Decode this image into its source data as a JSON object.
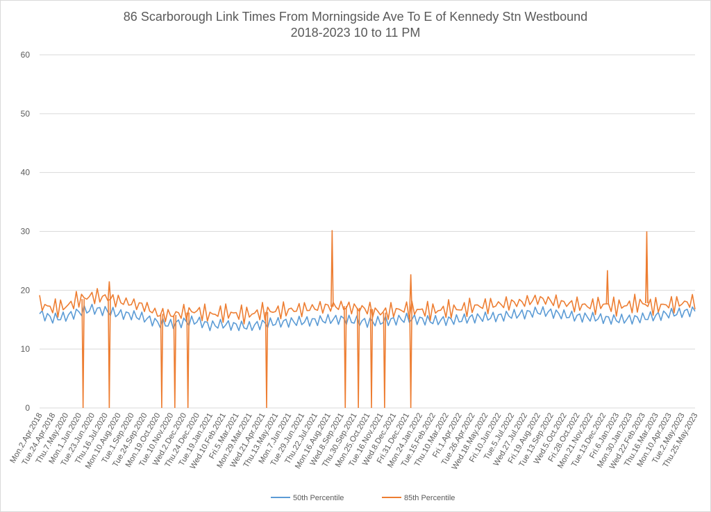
{
  "chart_data": {
    "type": "line",
    "title": [
      "86 Scarborough Link Times From Morningside Ave To E of Kennedy Stn Westbound",
      "2018-2023 10 to 11 PM"
    ],
    "xlabel": "",
    "ylabel": "",
    "ylim": [
      0,
      60
    ],
    "yticks": [
      0,
      10,
      20,
      30,
      40,
      50,
      60
    ],
    "grid": true,
    "legend_position": "bottom",
    "categories": [
      "Mon.2.Apr.2018",
      "Tue.24.Apr.2018",
      "Thu.7.May.2020",
      "Mon.1.Jun.2020",
      "Tue.23.Jun.2020",
      "Thu.16.Jul.2020",
      "Mon.10.Aug.2020",
      "Tue.1.Sep.2020",
      "Tue.24.Sep.2020",
      "Mon.19.Oct.2020",
      "Tue.10.Nov.2020",
      "Wed.2.Dec.2020",
      "Thu.24.Dec.2020",
      "Tue.19.Jan.2021",
      "Wed.10.Feb.2021",
      "Fri.5.Mar.2021",
      "Mon.29.Mar.2021",
      "Wed.21.Apr.2021",
      "Thu.13.May.2021",
      "Mon.7.Jun.2021",
      "Tue.29.Jun.2021",
      "Thu.22.Jul.2021",
      "Mon.16.Aug.2021",
      "Wed.8.Sep.2021",
      "Thu.30.Sep.2021",
      "Mon.25.Oct.2021",
      "Tue.16.Nov.2021",
      "Wed.8.Dec.2021",
      "Fri.31.Dec.2021",
      "Mon.24.Jan.2022",
      "Tue.15.Feb.2022",
      "Thu.10.Mar.2022",
      "Fri.1.Apr.2022",
      "Tue.26.Apr.2022",
      "Wed.18.May.2022",
      "Fri.10.Jun.2022",
      "Tue.5.Jul.2022",
      "Wed.27.Jul.2022",
      "Fri.19.Aug.2022",
      "Tue.13.Sep.2022",
      "Wed.5.Oct.2022",
      "Fri.28.Oct.2022",
      "Mon.21.Nov.2022",
      "Tue.13.Dec.2022",
      "Fri.6.Jan.2023",
      "Mon.30.Jan.2023",
      "Wed.22.Feb.2023",
      "Thu.16.Mar.2023",
      "Mon.10.Apr.2023",
      "Tue.2.May.2023",
      "Thu.25.May.2023"
    ],
    "series": [
      {
        "name": "50th Percentile",
        "color": "#5b9bd5",
        "values": [
          16.0,
          15.2,
          15.5,
          16.3,
          16.8,
          16.5,
          16.0,
          15.8,
          15.3,
          14.5,
          14.2,
          14.6,
          14.8,
          14.0,
          14.2,
          14.0,
          13.8,
          14.3,
          14.5,
          14.6,
          14.7,
          14.8,
          15.0,
          15.1,
          14.8,
          14.6,
          14.7,
          14.9,
          15.2,
          15.0,
          14.8,
          14.9,
          15.0,
          15.3,
          15.4,
          15.5,
          15.8,
          16.0,
          16.4,
          16.2,
          15.8,
          15.5,
          15.4,
          15.2,
          15.0,
          15.1,
          15.3,
          15.6,
          16.0,
          16.2,
          16.5
        ]
      },
      {
        "name": "85th Percentile",
        "color": "#ed7d31",
        "values": [
          17.6,
          17.0,
          17.2,
          18.5,
          19.0,
          18.8,
          18.2,
          17.8,
          17.3,
          16.0,
          15.8,
          16.2,
          16.5,
          15.8,
          16.2,
          16.0,
          15.9,
          16.3,
          16.5,
          16.6,
          16.8,
          17.0,
          17.2,
          17.3,
          17.0,
          16.8,
          16.2,
          16.5,
          16.8,
          16.6,
          16.5,
          16.7,
          16.8,
          17.2,
          17.4,
          17.6,
          17.8,
          18.0,
          18.5,
          18.2,
          17.8,
          17.5,
          17.3,
          17.6,
          17.2,
          17.5,
          17.8,
          17.2,
          17.6,
          17.8,
          18.0
        ]
      }
    ],
    "spikes_85th": [
      {
        "category": "Mon.1.Jun.2020",
        "value": 0
      },
      {
        "category": "Thu.16.Jul.2020",
        "value": 0
      },
      {
        "category": "Thu.16.Jul.2020",
        "value": 21.5
      },
      {
        "category": "Mon.19.Oct.2020",
        "value": 0
      },
      {
        "category": "Tue.10.Nov.2020",
        "value": 0
      },
      {
        "category": "Wed.2.Dec.2020",
        "value": 0
      },
      {
        "category": "Wed.21.Apr.2021",
        "value": 0
      },
      {
        "category": "Mon.16.Aug.2021",
        "value": 30.2
      },
      {
        "category": "Wed.8.Sep.2021",
        "value": 0
      },
      {
        "category": "Thu.30.Sep.2021",
        "value": 0
      },
      {
        "category": "Mon.25.Oct.2021",
        "value": 0
      },
      {
        "category": "Tue.16.Nov.2021",
        "value": 0
      },
      {
        "category": "Fri.31.Dec.2021",
        "value": 0
      },
      {
        "category": "Fri.31.Dec.2021",
        "value": 22.7
      },
      {
        "category": "Tue.13.Dec.2022",
        "value": 23.4
      },
      {
        "category": "Wed.22.Feb.2023",
        "value": 27.6
      },
      {
        "category": "Wed.22.Feb.2023",
        "value": 30.0
      }
    ]
  }
}
